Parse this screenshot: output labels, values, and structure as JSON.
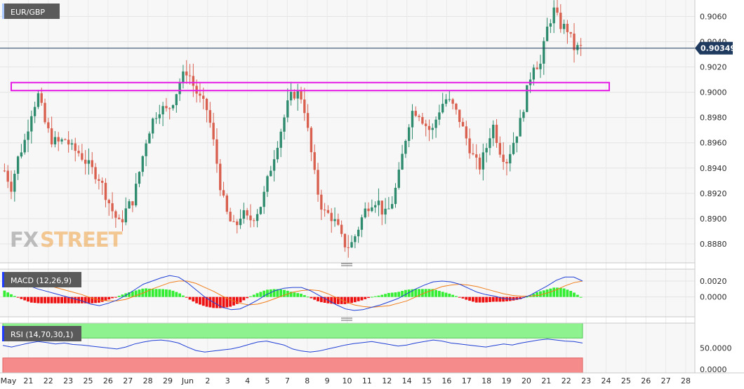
{
  "chart_data": [
    {
      "type": "candlestick",
      "title": "EUR/GBP",
      "last_value": "0.90349",
      "ylim": [
        0.8865,
        0.9073
      ],
      "y_ticks": [
        "0.9060",
        "0.9040",
        "0.9020",
        "0.9000",
        "0.8980",
        "0.8960",
        "0.8940",
        "0.8920",
        "0.8900",
        "0.8880"
      ],
      "x_ticks": [
        "May",
        "21",
        "22",
        "23",
        "25",
        "26",
        "27",
        "28",
        "29",
        "Jun",
        "2",
        "3",
        "4",
        "5",
        "7",
        "8",
        "9",
        "10",
        "11",
        "12",
        "14",
        "15",
        "16",
        "17",
        "18",
        "19",
        "20",
        "21",
        "22",
        "23",
        "24",
        "25",
        "26",
        "27",
        "28"
      ],
      "resistance_zone": [
        0.9003,
        0.9006
      ],
      "close_path": [
        [
          0,
          0.8938
        ],
        [
          2,
          0.8925
        ],
        [
          4,
          0.8948
        ],
        [
          6,
          0.8962
        ],
        [
          8,
          0.8985
        ],
        [
          10,
          0.8998
        ],
        [
          12,
          0.8975
        ],
        [
          14,
          0.8962
        ],
        [
          16,
          0.896
        ],
        [
          18,
          0.8963
        ],
        [
          20,
          0.8955
        ],
        [
          22,
          0.8952
        ],
        [
          24,
          0.8945
        ],
        [
          26,
          0.8938
        ],
        [
          28,
          0.8932
        ],
        [
          30,
          0.8918
        ],
        [
          32,
          0.8905
        ],
        [
          34,
          0.8895
        ],
        [
          36,
          0.8908
        ],
        [
          38,
          0.8915
        ],
        [
          40,
          0.894
        ],
        [
          42,
          0.8965
        ],
        [
          44,
          0.898
        ],
        [
          46,
          0.8988
        ],
        [
          48,
          0.8985
        ],
        [
          50,
          0.8995
        ],
        [
          52,
          0.901
        ],
        [
          54,
          0.9018
        ],
        [
          56,
          0.9003
        ],
        [
          58,
          0.8993
        ],
        [
          60,
          0.8985
        ],
        [
          62,
          0.8955
        ],
        [
          64,
          0.892
        ],
        [
          66,
          0.89
        ],
        [
          68,
          0.8892
        ],
        [
          70,
          0.8905
        ],
        [
          72,
          0.8898
        ],
        [
          74,
          0.8903
        ],
        [
          76,
          0.8913
        ],
        [
          78,
          0.8935
        ],
        [
          80,
          0.8955
        ],
        [
          82,
          0.8975
        ],
        [
          84,
          0.8995
        ],
        [
          86,
          0.9
        ],
        [
          88,
          0.8995
        ],
        [
          90,
          0.896
        ],
        [
          92,
          0.8925
        ],
        [
          94,
          0.8905
        ],
        [
          96,
          0.8903
        ],
        [
          98,
          0.8895
        ],
        [
          100,
          0.888
        ],
        [
          102,
          0.8878
        ],
        [
          104,
          0.889
        ],
        [
          106,
          0.8905
        ],
        [
          108,
          0.8913
        ],
        [
          110,
          0.8915
        ],
        [
          112,
          0.8902
        ],
        [
          114,
          0.891
        ],
        [
          116,
          0.893
        ],
        [
          118,
          0.896
        ],
        [
          120,
          0.8985
        ],
        [
          122,
          0.8985
        ],
        [
          124,
          0.8975
        ],
        [
          126,
          0.8968
        ],
        [
          128,
          0.8985
        ],
        [
          130,
          0.8995
        ],
        [
          132,
          0.899
        ],
        [
          134,
          0.898
        ],
        [
          136,
          0.8965
        ],
        [
          138,
          0.895
        ],
        [
          140,
          0.894
        ],
        [
          142,
          0.8955
        ],
        [
          144,
          0.8975
        ],
        [
          146,
          0.8955
        ],
        [
          148,
          0.8945
        ],
        [
          150,
          0.896
        ],
        [
          152,
          0.8975
        ],
        [
          154,
          0.9
        ],
        [
          156,
          0.9023
        ],
        [
          158,
          0.9021
        ],
        [
          160,
          0.905
        ],
        [
          162,
          0.9065
        ],
        [
          164,
          0.9053
        ],
        [
          166,
          0.905
        ],
        [
          168,
          0.9035
        ],
        [
          170,
          0.9035
        ]
      ]
    },
    {
      "type": "line",
      "title": "MACD (12,26,9)",
      "y_ticks": [
        "0.0020",
        "0.0000"
      ],
      "ylim": [
        -0.0025,
        0.0035
      ],
      "series": [
        {
          "values": [
            0.003,
            0.0026,
            0.002,
            0.0014,
            0.001,
            0.0007,
            0.0004,
            0.0001,
            -0.0002,
            -0.0005,
            -0.0009,
            -0.0011,
            -0.0008,
            -0.0004,
            0.0002,
            0.0009,
            0.0016,
            0.002,
            0.0024,
            0.0027,
            0.0025,
            0.0018,
            0.0009,
            0.0,
            -0.0007,
            -0.0013,
            -0.0016,
            -0.0015,
            -0.001,
            -0.0004,
            0.0003,
            0.0008,
            0.0011,
            0.0012,
            0.0012,
            0.0008,
            0.0002,
            -0.0004,
            -0.001,
            -0.0015,
            -0.0017,
            -0.0016,
            -0.0013,
            -0.001,
            -0.0006,
            -0.0002,
            0.0004,
            0.001,
            0.0015,
            0.0019,
            0.002,
            0.0019,
            0.0016,
            0.0011,
            0.0006,
            0.0003,
            0.0001,
            -0.0002,
            -0.0003,
            -0.0002,
            0.0002,
            0.0008,
            0.0014,
            0.0021,
            0.0025,
            0.0025,
            0.002
          ]
        },
        {
          "values": [
            0.0022,
            0.0024,
            0.0023,
            0.0021,
            0.0018,
            0.0015,
            0.0012,
            0.0009,
            0.0006,
            0.0003,
            -0.0001,
            -0.0004,
            -0.0005,
            -0.0005,
            -0.0003,
            0.0001,
            0.0005,
            0.001,
            0.0014,
            0.0018,
            0.002,
            0.002,
            0.0017,
            0.0012,
            0.0007,
            0.0001,
            -0.0004,
            -0.0008,
            -0.001,
            -0.0009,
            -0.0006,
            -0.0002,
            0.0002,
            0.0006,
            0.0008,
            0.0009,
            0.0008,
            0.0004,
            -0.0001,
            -0.0006,
            -0.001,
            -0.0012,
            -0.0013,
            -0.0012,
            -0.0011,
            -0.0008,
            -0.0005,
            0.0,
            0.0005,
            0.0009,
            0.0013,
            0.0015,
            0.0016,
            0.0015,
            0.0013,
            0.001,
            0.0007,
            0.0004,
            0.0002,
            0.0001,
            0.0001,
            0.0002,
            0.0005,
            0.0009,
            0.0014,
            0.0018,
            0.002
          ]
        }
      ]
    },
    {
      "type": "line",
      "title": "RSI (14,70,30,1)",
      "y_ticks": [
        "50.0000",
        "0.0000"
      ],
      "ylim": [
        0,
        100
      ],
      "overbought": 70,
      "oversold": 30,
      "series": [
        {
          "values": [
            55,
            52,
            56,
            60,
            63,
            61,
            58,
            60,
            57,
            56,
            54,
            52,
            50,
            48,
            52,
            58,
            62,
            65,
            66,
            64,
            60,
            52,
            45,
            42,
            44,
            46,
            48,
            52,
            57,
            62,
            64,
            60,
            56,
            48,
            44,
            42,
            44,
            48,
            52,
            56,
            59,
            61,
            63,
            60,
            57,
            54,
            56,
            60,
            63,
            66,
            64,
            60,
            58,
            56,
            54,
            52,
            55,
            58,
            56,
            60,
            63,
            66,
            68,
            66,
            64,
            63,
            60
          ]
        }
      ]
    }
  ]
}
